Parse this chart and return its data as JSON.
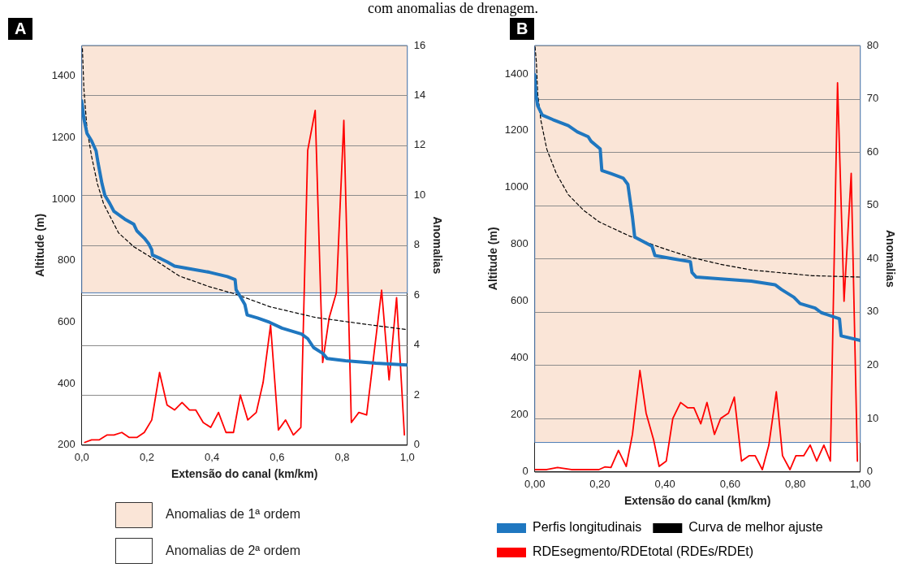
{
  "chart_data": [
    {
      "type": "line",
      "title": "A",
      "annotations": [
        "com anomalias de drenagem.",
        "Anomalias de 2ª ordem"
      ],
      "xlabel": "Extensão do canal (km/km)",
      "ylabel": "Altitude (m)",
      "y2label": "Anomalias",
      "xlim": [
        0,
        1
      ],
      "xticks": [
        {
          "value": 0,
          "label": "0,0"
        },
        {
          "value": 0.2,
          "label": "0,2"
        },
        {
          "value": 0.4,
          "label": "0,4"
        },
        {
          "value": 0.6,
          "label": "0,6"
        },
        {
          "value": 0.8,
          "label": "0,8"
        },
        {
          "value": 1,
          "label": "1,0"
        }
      ],
      "ylim": [
        200,
        1500
      ],
      "yticks": [
        200,
        400,
        600,
        800,
        1000,
        1200,
        1400
      ],
      "y2lim": [
        0,
        16
      ],
      "y2ticks": [
        0,
        2,
        4,
        6,
        8,
        10,
        12,
        14,
        16
      ],
      "grid": "y",
      "legend": "bottom",
      "marker": "none",
      "bands": [
        {
          "axis": "y",
          "from": 695,
          "to": 1500,
          "label": "Anomalias de 1ª ordem",
          "color": "#fae5d7"
        }
      ],
      "series": [
        {
          "color": "#1f77c0",
          "line_style": "solid",
          "x": [
            0,
            0.0065,
            0.016,
            0.03,
            0.044,
            0.05,
            0.062,
            0.071,
            0.085,
            0.099,
            0.132,
            0.16,
            0.169,
            0.192,
            0.206,
            0.215,
            0.217,
            0.243,
            0.262,
            0.285,
            0.327,
            0.392,
            0.447,
            0.471,
            0.474,
            0.485,
            0.501,
            0.508,
            0.54,
            0.577,
            0.615,
            0.675,
            0.694,
            0.712,
            0.74,
            0.754,
            0.81,
            0.903,
            1.0
          ],
          "values": [
            1320,
            1262,
            1214,
            1190,
            1157,
            1118,
            1051,
            1012,
            988,
            960,
            935,
            918,
            897,
            873,
            854,
            835,
            818,
            806,
            796,
            782,
            774,
            762,
            748,
            738,
            705,
            686,
            657,
            623,
            613,
            599,
            580,
            561,
            546,
            517,
            498,
            481,
            474,
            466,
            460
          ]
        },
        {
          "color": "#000000",
          "line_style": "dashed",
          "x": [
            0.002,
            0.0065,
            0.016,
            0.03,
            0.048,
            0.067,
            0.113,
            0.16,
            0.206,
            0.299,
            0.392,
            0.475,
            0.577,
            0.717,
            0.856,
            1.0
          ],
          "values": [
            1490,
            1360,
            1230,
            1140,
            1050,
            985,
            890,
            845,
            815,
            750,
            715,
            690,
            650,
            615,
            595,
            575
          ]
        },
        {
          "color": "#ff0000",
          "line_style": "solid",
          "axis": "y2",
          "x": [
            0.009,
            0.03,
            0.053,
            0.078,
            0.099,
            0.123,
            0.146,
            0.169,
            0.192,
            0.215,
            0.239,
            0.262,
            0.285,
            0.308,
            0.331,
            0.35,
            0.373,
            0.396,
            0.42,
            0.443,
            0.466,
            0.487,
            0.51,
            0.536,
            0.557,
            0.58,
            0.604,
            0.626,
            0.65,
            0.673,
            0.694,
            0.717,
            0.74,
            0.76,
            0.782,
            0.805,
            0.828,
            0.851,
            0.875,
            0.921,
            0.944,
            0.967,
            0.991
          ],
          "values": [
            0.1,
            0.2,
            0.2,
            0.4,
            0.4,
            0.5,
            0.3,
            0.3,
            0.5,
            1.0,
            2.9,
            1.6,
            1.4,
            1.7,
            1.4,
            1.4,
            0.9,
            0.7,
            1.3,
            0.5,
            0.5,
            2.0,
            1.0,
            1.3,
            2.5,
            4.8,
            0.6,
            1.0,
            0.4,
            0.7,
            11.8,
            13.4,
            3.3,
            5.1,
            6.1,
            13.0,
            0.9,
            1.3,
            1.2,
            6.2,
            2.6,
            5.9,
            0.4
          ]
        }
      ]
    },
    {
      "type": "line",
      "title": "B",
      "xlabel": "Extensão do canal (km/km)",
      "ylabel": "Altitude (m)",
      "y2label": "Anomalias",
      "xlim": [
        0,
        1
      ],
      "xticks": [
        {
          "value": 0,
          "label": "0,00"
        },
        {
          "value": 0.2,
          "label": "0,20"
        },
        {
          "value": 0.4,
          "label": "0,40"
        },
        {
          "value": 0.6,
          "label": "0,60"
        },
        {
          "value": 0.8,
          "label": "0,80"
        },
        {
          "value": 1,
          "label": "1,00"
        }
      ],
      "ylim": [
        0,
        1500
      ],
      "yticks": [
        0,
        200,
        400,
        600,
        800,
        1000,
        1200,
        1400
      ],
      "y2lim": [
        0,
        80
      ],
      "y2ticks": [
        0,
        10,
        20,
        30,
        40,
        50,
        60,
        70,
        80
      ],
      "grid": "y",
      "legend": "bottom",
      "marker": "none",
      "bands": [
        {
          "axis": "y",
          "from": 103,
          "to": 1500,
          "color": "#fae5d7"
        }
      ],
      "series": [
        {
          "name": "Perfis longitudinais",
          "color": "#1f77c0",
          "line_style": "solid",
          "x": [
            0,
            0.003,
            0.009,
            0.023,
            0.056,
            0.103,
            0.131,
            0.164,
            0.173,
            0.201,
            0.206,
            0.234,
            0.272,
            0.286,
            0.3,
            0.307,
            0.333,
            0.36,
            0.369,
            0.421,
            0.478,
            0.483,
            0.496,
            0.571,
            0.665,
            0.738,
            0.758,
            0.796,
            0.815,
            0.861,
            0.88,
            0.936,
            0.941,
            1.0
          ],
          "values": [
            1397,
            1332,
            1288,
            1255,
            1239,
            1218,
            1196,
            1179,
            1163,
            1136,
            1060,
            1049,
            1033,
            1011,
            897,
            826,
            810,
            794,
            761,
            750,
            739,
            701,
            685,
            679,
            671,
            658,
            641,
            614,
            592,
            576,
            560,
            538,
            478,
            462
          ]
        },
        {
          "name": "Curva de melhor ajuste",
          "color": "#000000",
          "line_style": "dashed",
          "x": [
            0.001,
            0.005,
            0.009,
            0.019,
            0.037,
            0.066,
            0.103,
            0.15,
            0.197,
            0.243,
            0.29,
            0.384,
            0.478,
            0.571,
            0.665,
            0.758,
            0.852,
            1.0
          ],
          "values": [
            1495,
            1440,
            1330,
            1235,
            1135,
            1050,
            975,
            920,
            880,
            855,
            830,
            790,
            755,
            730,
            710,
            700,
            690,
            685
          ]
        },
        {
          "name": "RDEsegmento/RDEtotal (RDEs/RDEt)",
          "color": "#ff0000",
          "line_style": "solid",
          "axis": "y2",
          "x": [
            0,
            0.037,
            0.07,
            0.112,
            0.154,
            0.178,
            0.197,
            0.215,
            0.234,
            0.257,
            0.281,
            0.3,
            0.323,
            0.342,
            0.365,
            0.382,
            0.404,
            0.424,
            0.448,
            0.47,
            0.489,
            0.51,
            0.529,
            0.552,
            0.571,
            0.595,
            0.613,
            0.635,
            0.658,
            0.677,
            0.699,
            0.719,
            0.742,
            0.761,
            0.784,
            0.802,
            0.826,
            0.846,
            0.866,
            0.888,
            0.908,
            0.93,
            0.95,
            0.972,
            0.991
          ],
          "values": [
            0.4,
            0.4,
            0.8,
            0.4,
            0.4,
            0.4,
            0.4,
            0.9,
            0.8,
            4,
            1,
            7,
            19,
            11,
            6,
            1,
            2,
            10,
            13,
            12,
            12,
            9,
            13,
            7,
            10,
            11,
            14,
            2,
            3,
            3,
            0.4,
            5,
            15,
            3,
            0.4,
            3,
            3,
            5,
            2,
            5,
            2,
            73,
            32,
            56,
            2
          ]
        }
      ]
    }
  ]
}
